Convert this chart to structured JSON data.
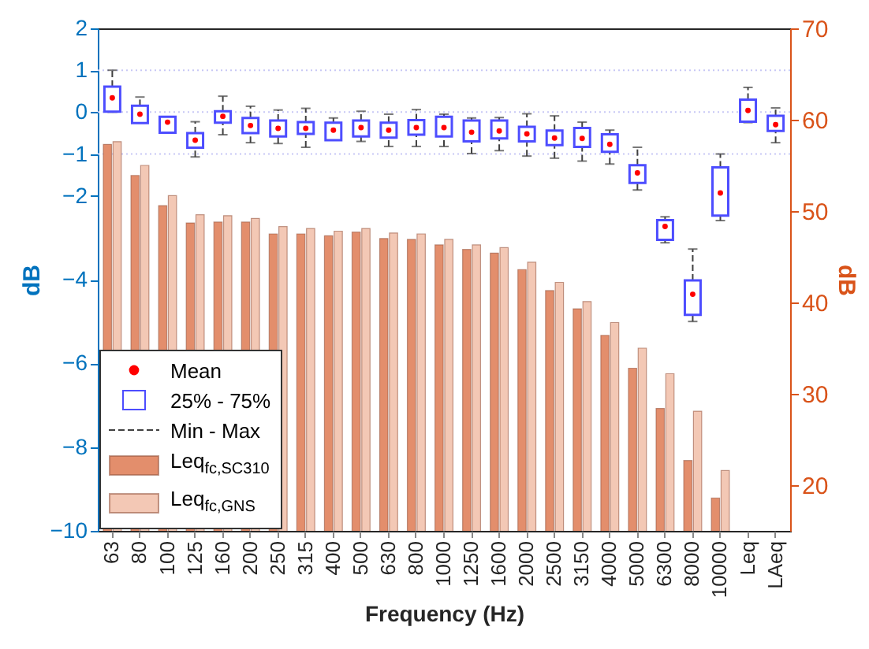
{
  "chart_data": {
    "type": "bar",
    "xlabel": "Frequency (Hz)",
    "ylabel": "dB",
    "y2label": "dB",
    "categories": [
      "63",
      "80",
      "100",
      "125",
      "160",
      "200",
      "250",
      "315",
      "400",
      "500",
      "630",
      "800",
      "1000",
      "1250",
      "1600",
      "2000",
      "2500",
      "3150",
      "4000",
      "5000",
      "6300",
      "8000",
      "10000",
      "Leq",
      "LAeq"
    ],
    "ylim": [
      -10,
      2
    ],
    "yticks": [
      2,
      1,
      0,
      -1,
      -2,
      -4,
      -6,
      -8,
      -10
    ],
    "y2lim": [
      15,
      70
    ],
    "y2ticks": [
      20,
      30,
      40,
      50,
      60,
      70
    ],
    "series": [
      {
        "type": "box",
        "color": "#4d4dff",
        "boxes": [
          {
            "low": 0.0,
            "q1": 0.01,
            "median": 0.34,
            "q3": 0.61,
            "high": 1.0
          },
          {
            "low": -0.26,
            "q1": -0.26,
            "median": -0.05,
            "q3": 0.15,
            "high": 0.36
          },
          {
            "low": -0.49,
            "q1": -0.49,
            "median": -0.24,
            "q3": -0.11,
            "high": -0.11
          },
          {
            "low": -1.07,
            "q1": -0.85,
            "median": -0.67,
            "q3": -0.5,
            "high": -0.23
          },
          {
            "low": -0.54,
            "q1": -0.25,
            "median": -0.1,
            "q3": 0.02,
            "high": 0.38
          },
          {
            "low": -0.73,
            "q1": -0.5,
            "median": -0.32,
            "q3": -0.14,
            "high": 0.14
          },
          {
            "low": -0.75,
            "q1": -0.58,
            "median": -0.39,
            "q3": -0.2,
            "high": 0.05
          },
          {
            "low": -0.84,
            "q1": -0.52,
            "median": -0.39,
            "q3": -0.24,
            "high": 0.09
          },
          {
            "low": -0.67,
            "q1": -0.67,
            "median": -0.43,
            "q3": -0.25,
            "high": -0.14
          },
          {
            "low": -0.7,
            "q1": -0.58,
            "median": -0.37,
            "q3": -0.2,
            "high": 0.02
          },
          {
            "low": -0.82,
            "q1": -0.61,
            "median": -0.43,
            "q3": -0.25,
            "high": -0.05
          },
          {
            "low": -0.82,
            "q1": -0.54,
            "median": -0.37,
            "q3": -0.19,
            "high": 0.06
          },
          {
            "low": -0.82,
            "q1": -0.58,
            "median": -0.37,
            "q3": -0.11,
            "high": -0.05
          },
          {
            "low": -0.99,
            "q1": -0.7,
            "median": -0.48,
            "q3": -0.2,
            "high": -0.14
          },
          {
            "low": -0.92,
            "q1": -0.63,
            "median": -0.45,
            "q3": -0.2,
            "high": -0.13
          },
          {
            "low": -1.05,
            "q1": -0.7,
            "median": -0.52,
            "q3": -0.35,
            "high": -0.04
          },
          {
            "low": -1.1,
            "q1": -0.79,
            "median": -0.62,
            "q3": -0.44,
            "high": -0.09
          },
          {
            "low": -1.17,
            "q1": -0.83,
            "median": -0.63,
            "q3": -0.38,
            "high": -0.24
          },
          {
            "low": -1.24,
            "q1": -0.95,
            "median": -0.77,
            "q3": -0.53,
            "high": -0.43
          },
          {
            "low": -1.86,
            "q1": -1.69,
            "median": -1.45,
            "q3": -1.27,
            "high": -0.84
          },
          {
            "low": -3.12,
            "q1": -3.05,
            "median": -2.73,
            "q3": -2.58,
            "high": -2.5
          },
          {
            "low": -5.0,
            "q1": -4.84,
            "median": -4.35,
            "q3": -4.02,
            "high": -3.27
          },
          {
            "low": -2.59,
            "q1": -2.47,
            "median": -1.93,
            "q3": -1.32,
            "high": -1.0
          },
          {
            "low": -0.25,
            "q1": -0.23,
            "median": 0.04,
            "q3": 0.3,
            "high": 0.59
          },
          {
            "low": -0.73,
            "q1": -0.45,
            "median": -0.3,
            "q3": -0.09,
            "high": 0.1
          }
        ]
      },
      {
        "axis": "y2",
        "name": "Leq$_{fc,SC310}$",
        "color": "#e38e6c",
        "values": [
          57.3,
          53.9,
          50.6,
          48.7,
          48.8,
          48.8,
          47.5,
          47.5,
          47.3,
          47.7,
          47.0,
          46.9,
          46.3,
          45.8,
          45.4,
          43.6,
          41.3,
          39.3,
          36.4,
          32.8,
          28.4,
          22.7,
          18.6,
          null,
          null
        ]
      },
      {
        "axis": "y2",
        "name": "Leq$_{fc,GNS}$",
        "color": "#f3c8b5",
        "values": [
          57.6,
          55.0,
          51.7,
          49.6,
          49.5,
          49.2,
          48.3,
          48.1,
          47.8,
          48.1,
          47.6,
          47.5,
          46.9,
          46.3,
          46.0,
          44.4,
          42.2,
          40.1,
          37.8,
          35.0,
          32.2,
          28.1,
          21.6,
          null,
          null
        ]
      }
    ],
    "annotations": [
      "Mean",
      "25% - 75%",
      "Min - Max"
    ],
    "ref_lines": [
      {
        "axis": "y",
        "value": 1,
        "color": "#c8c8f5",
        "line_style": "dotted"
      },
      {
        "axis": "y",
        "value": 0,
        "color": "#c8c8f5",
        "line_style": "dotted"
      },
      {
        "axis": "y",
        "value": -1,
        "color": "#c8c8f5",
        "line_style": "dotted"
      }
    ],
    "legend": "bottom left"
  }
}
